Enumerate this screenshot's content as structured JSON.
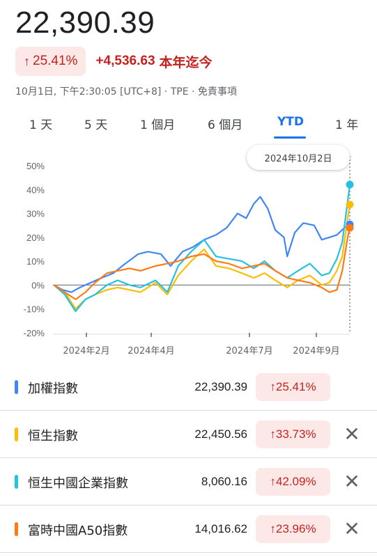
{
  "header": {
    "price": "22,390.39",
    "change_arrow": "↑",
    "change_pct": "25.41%",
    "change_abs": "+4,536.63",
    "period": "本年迄今",
    "meta": "10月1日, 下午2:30:05 [UTC+8] · TPE · 免責事項"
  },
  "tabs": [
    {
      "label": "1 天"
    },
    {
      "label": "5 天"
    },
    {
      "label": "1 個月"
    },
    {
      "label": "6 個月"
    },
    {
      "label": "YTD",
      "active": true
    },
    {
      "label": "1 年"
    }
  ],
  "tooltip": "2024年10月2日",
  "chart_data": {
    "type": "line",
    "y_unit": "%",
    "yticks": [
      "50%",
      "40%",
      "30%",
      "20%",
      "10%",
      "0%",
      "-10%",
      "-20%"
    ],
    "ylim": [
      -20,
      50
    ],
    "x_range": [
      "2024-01-01",
      "2024-10-02"
    ],
    "xticks": [
      {
        "label": "2024年2月",
        "date": "2024-02-01"
      },
      {
        "label": "2024年4月",
        "date": "2024-04-01"
      },
      {
        "label": "2024年7月",
        "date": "2024-07-01"
      },
      {
        "label": "2024年9月",
        "date": "2024-09-01"
      }
    ],
    "grid": false,
    "zero_line": true,
    "series": [
      {
        "name": "加權指數",
        "color": "#4285f4",
        "points": [
          [
            "2024-01-02",
            0
          ],
          [
            "2024-01-10",
            -2
          ],
          [
            "2024-01-18",
            -3
          ],
          [
            "2024-01-26",
            -1
          ],
          [
            "2024-02-05",
            1
          ],
          [
            "2024-02-15",
            3
          ],
          [
            "2024-02-26",
            5
          ],
          [
            "2024-03-08",
            9
          ],
          [
            "2024-03-20",
            13
          ],
          [
            "2024-03-29",
            14
          ],
          [
            "2024-04-10",
            13
          ],
          [
            "2024-04-19",
            8
          ],
          [
            "2024-04-30",
            14
          ],
          [
            "2024-05-10",
            16
          ],
          [
            "2024-05-20",
            19
          ],
          [
            "2024-05-31",
            21
          ],
          [
            "2024-06-10",
            24
          ],
          [
            "2024-06-20",
            30
          ],
          [
            "2024-06-28",
            28
          ],
          [
            "2024-07-05",
            34
          ],
          [
            "2024-07-11",
            37
          ],
          [
            "2024-07-18",
            32
          ],
          [
            "2024-07-25",
            23
          ],
          [
            "2024-08-02",
            20
          ],
          [
            "2024-08-05",
            12
          ],
          [
            "2024-08-12",
            22
          ],
          [
            "2024-08-20",
            26
          ],
          [
            "2024-08-30",
            25
          ],
          [
            "2024-09-06",
            19
          ],
          [
            "2024-09-13",
            20
          ],
          [
            "2024-09-20",
            21
          ],
          [
            "2024-09-27",
            24
          ],
          [
            "2024-10-02",
            25.41
          ]
        ]
      },
      {
        "name": "恒生指數",
        "color": "#fbbc04",
        "points": [
          [
            "2024-01-02",
            0
          ],
          [
            "2024-01-12",
            -3
          ],
          [
            "2024-01-22",
            -10
          ],
          [
            "2024-01-31",
            -6
          ],
          [
            "2024-02-09",
            -4
          ],
          [
            "2024-02-20",
            -2
          ],
          [
            "2024-03-01",
            -1
          ],
          [
            "2024-03-12",
            -2
          ],
          [
            "2024-03-22",
            -3
          ],
          [
            "2024-04-05",
            1
          ],
          [
            "2024-04-16",
            -4
          ],
          [
            "2024-04-26",
            4
          ],
          [
            "2024-05-08",
            10
          ],
          [
            "2024-05-20",
            15
          ],
          [
            "2024-05-31",
            8
          ],
          [
            "2024-06-12",
            7
          ],
          [
            "2024-06-24",
            5
          ],
          [
            "2024-07-05",
            3
          ],
          [
            "2024-07-15",
            5
          ],
          [
            "2024-07-25",
            2
          ],
          [
            "2024-08-05",
            -1
          ],
          [
            "2024-08-15",
            2
          ],
          [
            "2024-08-26",
            4
          ],
          [
            "2024-09-06",
            0
          ],
          [
            "2024-09-13",
            1
          ],
          [
            "2024-09-20",
            6
          ],
          [
            "2024-09-25",
            12
          ],
          [
            "2024-09-30",
            28
          ],
          [
            "2024-10-02",
            33.73
          ]
        ]
      },
      {
        "name": "恒生中國企業指數",
        "color": "#24c1e0",
        "points": [
          [
            "2024-01-02",
            0
          ],
          [
            "2024-01-12",
            -4
          ],
          [
            "2024-01-22",
            -11
          ],
          [
            "2024-01-31",
            -6
          ],
          [
            "2024-02-09",
            -4
          ],
          [
            "2024-02-20",
            0
          ],
          [
            "2024-03-01",
            2
          ],
          [
            "2024-03-12",
            0
          ],
          [
            "2024-03-22",
            -1
          ],
          [
            "2024-04-05",
            2
          ],
          [
            "2024-04-16",
            -3
          ],
          [
            "2024-04-26",
            8
          ],
          [
            "2024-05-08",
            14
          ],
          [
            "2024-05-20",
            19
          ],
          [
            "2024-05-31",
            12
          ],
          [
            "2024-06-12",
            11
          ],
          [
            "2024-06-24",
            10
          ],
          [
            "2024-07-05",
            7
          ],
          [
            "2024-07-15",
            10
          ],
          [
            "2024-07-25",
            6
          ],
          [
            "2024-08-05",
            3
          ],
          [
            "2024-08-15",
            6
          ],
          [
            "2024-08-26",
            9
          ],
          [
            "2024-09-06",
            4
          ],
          [
            "2024-09-13",
            5
          ],
          [
            "2024-09-20",
            11
          ],
          [
            "2024-09-25",
            18
          ],
          [
            "2024-09-30",
            35
          ],
          [
            "2024-10-02",
            42.09
          ]
        ]
      },
      {
        "name": "富時中國A50指數",
        "color": "#fa7b17",
        "points": [
          [
            "2024-01-02",
            0
          ],
          [
            "2024-01-12",
            -3
          ],
          [
            "2024-01-22",
            -6
          ],
          [
            "2024-01-31",
            -3
          ],
          [
            "2024-02-09",
            1
          ],
          [
            "2024-02-20",
            5
          ],
          [
            "2024-03-01",
            6
          ],
          [
            "2024-03-12",
            7
          ],
          [
            "2024-03-22",
            6
          ],
          [
            "2024-04-05",
            8
          ],
          [
            "2024-04-16",
            9
          ],
          [
            "2024-04-26",
            10
          ],
          [
            "2024-05-08",
            12
          ],
          [
            "2024-05-20",
            13
          ],
          [
            "2024-05-31",
            10
          ],
          [
            "2024-06-12",
            9
          ],
          [
            "2024-06-24",
            7
          ],
          [
            "2024-07-05",
            8
          ],
          [
            "2024-07-15",
            9
          ],
          [
            "2024-07-25",
            6
          ],
          [
            "2024-08-05",
            3
          ],
          [
            "2024-08-15",
            2
          ],
          [
            "2024-08-26",
            1
          ],
          [
            "2024-09-06",
            -1
          ],
          [
            "2024-09-13",
            -3
          ],
          [
            "2024-09-20",
            -2
          ],
          [
            "2024-09-25",
            6
          ],
          [
            "2024-09-30",
            20
          ],
          [
            "2024-10-02",
            23.96
          ]
        ]
      }
    ]
  },
  "list": [
    {
      "name": "加權指數",
      "value": "22,390.39",
      "arrow": "↑",
      "pct": "25.41%",
      "color": "#4285f4",
      "closable": false
    },
    {
      "name": "恒生指數",
      "value": "22,450.56",
      "arrow": "↑",
      "pct": "33.73%",
      "color": "#fbbc04",
      "closable": true
    },
    {
      "name": "恒生中國企業指數",
      "value": "8,060.16",
      "arrow": "↑",
      "pct": "42.09%",
      "color": "#24c1e0",
      "closable": true
    },
    {
      "name": "富時中國A50指數",
      "value": "14,016.62",
      "arrow": "↑",
      "pct": "23.96%",
      "color": "#fa7b17",
      "closable": true
    }
  ],
  "icons": {
    "close": "close-icon",
    "close_glyph": "✕"
  }
}
